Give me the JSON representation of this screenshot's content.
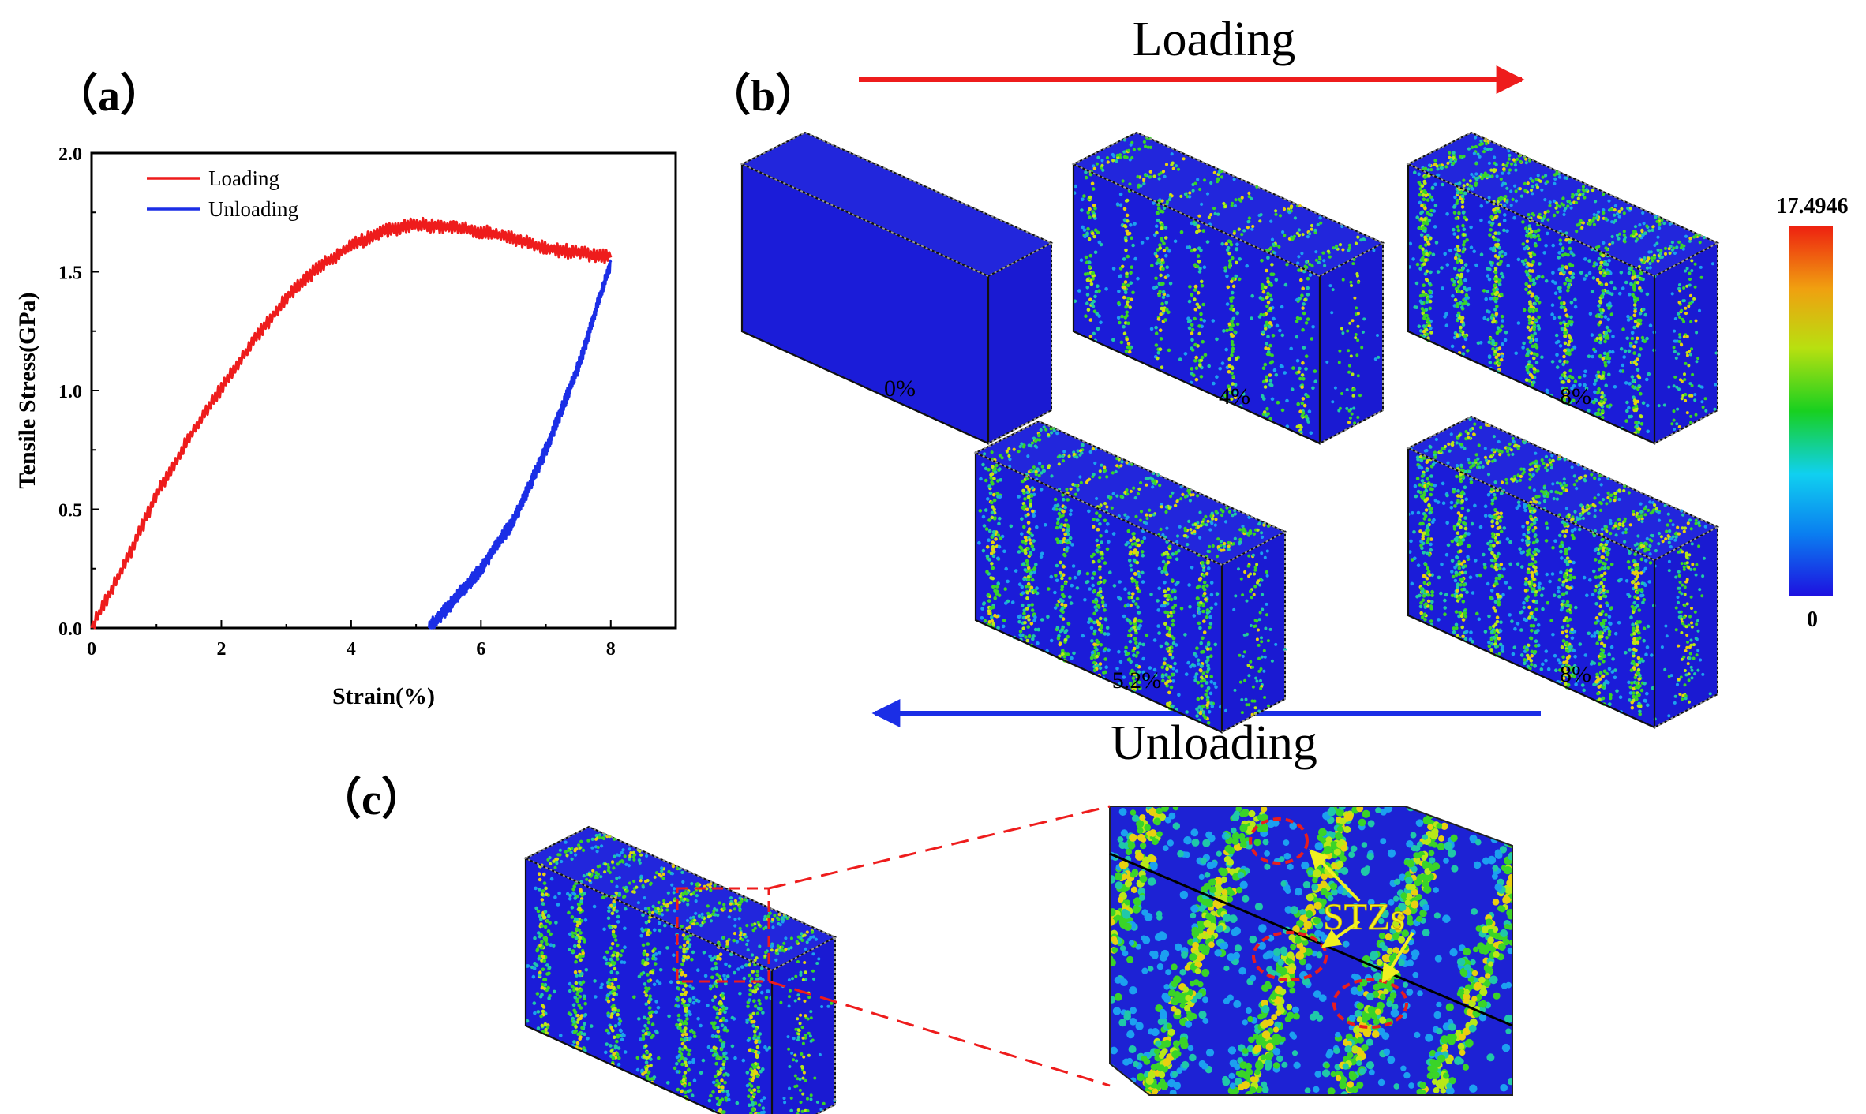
{
  "panels": {
    "a": "（a）",
    "b": "（b）",
    "c": "（c）"
  },
  "arrows": {
    "loading": {
      "label": "Loading",
      "color": "#ee1c1c"
    },
    "unloading": {
      "label": "Unloading",
      "color": "#1b2ee6"
    }
  },
  "snapshots": {
    "loading": [
      {
        "label": "0%",
        "level": 0
      },
      {
        "label": "4%",
        "level": 0.55
      },
      {
        "label": "8%",
        "level": 1
      }
    ],
    "unloading": [
      {
        "label": "5.2%",
        "level": 0.85
      },
      {
        "label": "8%",
        "level": 1
      }
    ]
  },
  "colorbar": {
    "max_label": "17.4946",
    "min_label": "0",
    "colors": [
      "#1e10e0",
      "#0a7ff0",
      "#10d0f0",
      "#18d020",
      "#b8e010",
      "#f0a010",
      "#ee2010"
    ]
  },
  "zoom_annotation": {
    "label": "STZs",
    "color": "#f0f020"
  },
  "chart_data": {
    "type": "line",
    "xlabel": "Strain(%)",
    "ylabel": "Tensile Stress(GPa)",
    "xlim": [
      0,
      9
    ],
    "ylim": [
      0,
      2.0
    ],
    "xticks": [
      "0",
      "2",
      "4",
      "6",
      "8"
    ],
    "yticks": [
      "0.0",
      "0.5",
      "1.0",
      "1.5",
      "2.0"
    ],
    "legend_position": "top-left",
    "grid": false,
    "series": [
      {
        "name": "Loading",
        "color": "#ee1c1c",
        "x": [
          0,
          0.5,
          1.0,
          1.5,
          2.0,
          2.5,
          3.0,
          3.5,
          4.0,
          4.5,
          5.0,
          5.5,
          6.0,
          6.5,
          7.0,
          7.5,
          8.0
        ],
        "y": [
          0,
          0.26,
          0.56,
          0.8,
          1.01,
          1.21,
          1.39,
          1.52,
          1.61,
          1.67,
          1.7,
          1.69,
          1.67,
          1.64,
          1.6,
          1.58,
          1.56
        ]
      },
      {
        "name": "Unloading",
        "color": "#1b2ee6",
        "x": [
          5.2,
          5.5,
          6.0,
          6.5,
          7.0,
          7.5,
          8.0
        ],
        "y": [
          0.0,
          0.09,
          0.25,
          0.45,
          0.75,
          1.1,
          1.54
        ]
      }
    ]
  }
}
